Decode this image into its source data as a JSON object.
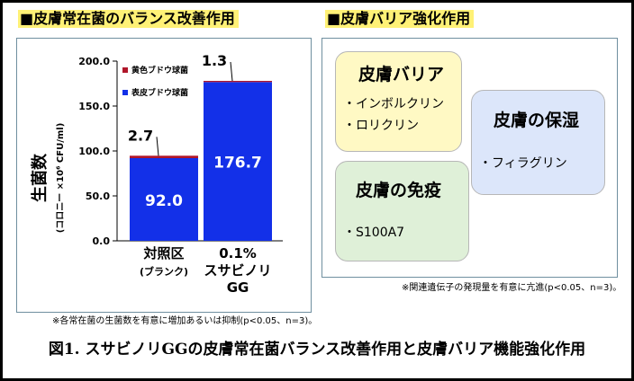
{
  "left_heading": "■皮膚常在菌のバランス改善作用",
  "right_heading": "■皮膚バリア強化作用",
  "left_note": "※各常在菌の生菌数を有意に増加あるいは抑制(p<0.05、n=3)。",
  "right_note": "※関連遺伝子の発現量を有意に亢進(p<0.05、n=3)。",
  "caption": "図1. スサビノリGGの皮膚常在菌バランス改善作用と皮膚バリア機能強化作用",
  "colors": {
    "blue": "#1330e8",
    "red": "#b0162a",
    "heading_bg": "#fff176"
  },
  "chart_data": {
    "type": "bar",
    "stacked": true,
    "categories": [
      [
        "対照区",
        "(ブランク)"
      ],
      [
        "0.1%",
        "スサビノリ",
        "GG"
      ]
    ],
    "series": [
      {
        "name": "表皮ブドウ球菌",
        "color": "#1330e8",
        "values": [
          92.0,
          176.7
        ],
        "labels": [
          "92.0",
          "176.7"
        ]
      },
      {
        "name": "黄色ブドウ球菌",
        "color": "#b0162a",
        "values": [
          2.7,
          1.3
        ],
        "labels": [
          "2.7",
          "1.3"
        ]
      }
    ],
    "ylabel": "生菌数",
    "yunit": "(コロニー ×10⁶ CFU/ml)",
    "ylim": [
      0,
      200
    ],
    "yticks": [
      "0.0",
      "50.0",
      "100.0",
      "150.0",
      "200.0"
    ],
    "legend": "top-left",
    "grid": false
  },
  "barrier": {
    "boxes": [
      {
        "title": "皮膚バリア",
        "items": [
          "・インボルクリン",
          "・ロリクリン"
        ],
        "color": "#fff9c4"
      },
      {
        "title": "皮膚の保湿",
        "items": [
          "・フィラグリン"
        ],
        "color": "#dce6fa"
      },
      {
        "title": "皮膚の免疫",
        "items": [
          "・S100A7"
        ],
        "color": "#dff0d8"
      }
    ]
  }
}
